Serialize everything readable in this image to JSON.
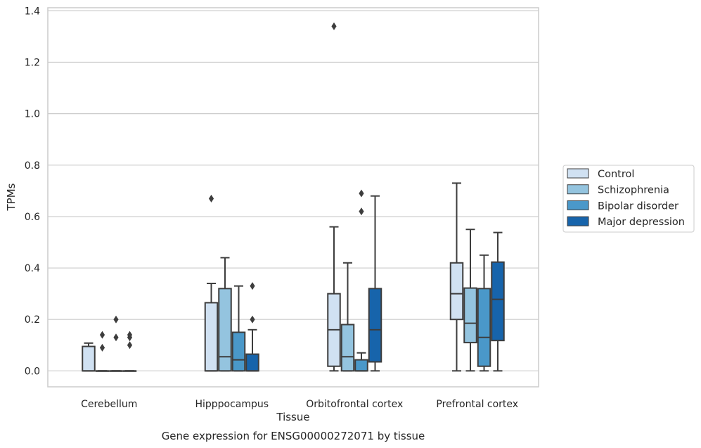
{
  "caption": "Gene expression for ENSG00000272071 by tissue",
  "chart_data": {
    "type": "box",
    "title": "",
    "xlabel": "Tissue",
    "ylabel": "TPMs",
    "ylim": [
      -0.062,
      1.412
    ],
    "yticks": [
      "0.0",
      "0.2",
      "0.4",
      "0.6",
      "0.8",
      "1.0",
      "1.2",
      "1.4"
    ],
    "grid": "horizontal",
    "legend_position": "right",
    "categories": [
      "Cerebellum",
      "Hipppocampus",
      "Orbitofrontal cortex",
      "Prefrontal cortex"
    ],
    "series": [
      {
        "name": "Control",
        "color": "#d0e1f2",
        "boxes": [
          {
            "whislo": 0.0,
            "q1": 0.0,
            "med": 0.0,
            "q3": 0.095,
            "whishi": 0.108,
            "fliers": []
          },
          {
            "whislo": 0.0,
            "q1": 0.0,
            "med": 0.0,
            "q3": 0.265,
            "whishi": 0.34,
            "fliers": [
              0.67
            ]
          },
          {
            "whislo": 0.0,
            "q1": 0.018,
            "med": 0.16,
            "q3": 0.3,
            "whishi": 0.56,
            "fliers": [
              1.34
            ]
          },
          {
            "whislo": 0.0,
            "q1": 0.2,
            "med": 0.3,
            "q3": 0.42,
            "whishi": 0.73,
            "fliers": []
          }
        ]
      },
      {
        "name": "Schizophrenia",
        "color": "#94c4df",
        "boxes": [
          {
            "whislo": 0.0,
            "q1": 0.0,
            "med": 0.0,
            "q3": 0.0,
            "whishi": 0.0,
            "fliers": [
              0.14,
              0.09
            ]
          },
          {
            "whislo": 0.0,
            "q1": 0.0,
            "med": 0.055,
            "q3": 0.32,
            "whishi": 0.44,
            "fliers": []
          },
          {
            "whislo": 0.0,
            "q1": 0.0,
            "med": 0.055,
            "q3": 0.18,
            "whishi": 0.42,
            "fliers": []
          },
          {
            "whislo": 0.0,
            "q1": 0.11,
            "med": 0.185,
            "q3": 0.322,
            "whishi": 0.55,
            "fliers": []
          }
        ]
      },
      {
        "name": "Bipolar disorder",
        "color": "#4a98c9",
        "boxes": [
          {
            "whislo": 0.0,
            "q1": 0.0,
            "med": 0.0,
            "q3": 0.0,
            "whishi": 0.0,
            "fliers": [
              0.2,
              0.13
            ]
          },
          {
            "whislo": 0.0,
            "q1": 0.0,
            "med": 0.043,
            "q3": 0.15,
            "whishi": 0.33,
            "fliers": []
          },
          {
            "whislo": 0.0,
            "q1": 0.0,
            "med": 0.0,
            "q3": 0.043,
            "whishi": 0.07,
            "fliers": [
              0.69,
              0.62
            ]
          },
          {
            "whislo": 0.0,
            "q1": 0.018,
            "med": 0.13,
            "q3": 0.32,
            "whishi": 0.45,
            "fliers": []
          }
        ]
      },
      {
        "name": "Major depression",
        "color": "#1764ab",
        "boxes": [
          {
            "whislo": 0.0,
            "q1": 0.0,
            "med": 0.0,
            "q3": 0.0,
            "whishi": 0.0,
            "fliers": [
              0.14,
              0.13,
              0.1
            ]
          },
          {
            "whislo": 0.0,
            "q1": 0.0,
            "med": 0.0,
            "q3": 0.065,
            "whishi": 0.16,
            "fliers": [
              0.33,
              0.2
            ]
          },
          {
            "whislo": 0.0,
            "q1": 0.035,
            "med": 0.16,
            "q3": 0.32,
            "whishi": 0.68,
            "fliers": []
          },
          {
            "whislo": 0.0,
            "q1": 0.118,
            "med": 0.278,
            "q3": 0.423,
            "whishi": 0.538,
            "fliers": []
          }
        ]
      }
    ]
  }
}
